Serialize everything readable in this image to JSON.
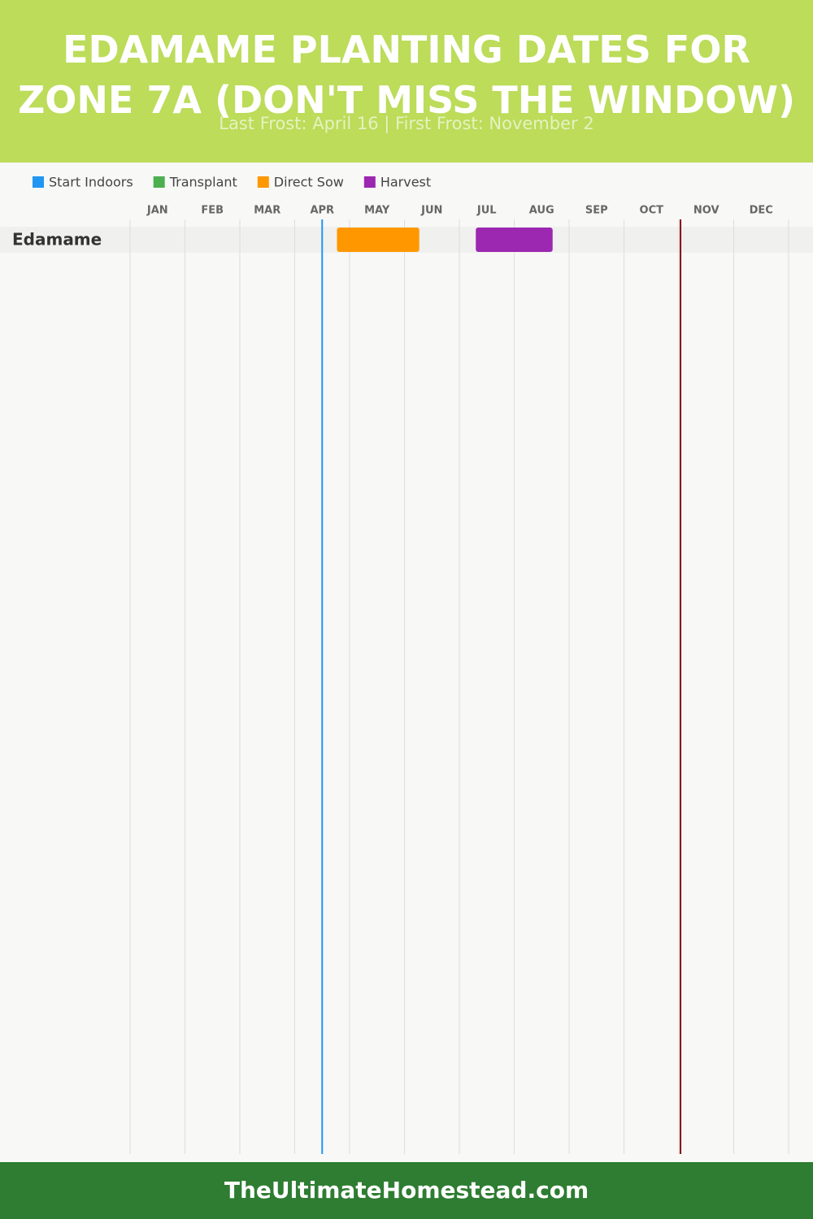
{
  "chart_data": {
    "type": "gantt",
    "title": "EDAMAME PLANTING DATES FOR ZONE 7A (DON'T MISS THE WINDOW)",
    "subtitle": "Last Frost: April 16 | First Frost: November 2",
    "categories": [
      "Edamame"
    ],
    "series": [
      {
        "name": "Start Indoors",
        "color": "#2196f3",
        "values": [
          null
        ]
      },
      {
        "name": "Transplant",
        "color": "#4caf50",
        "values": [
          null
        ]
      },
      {
        "name": "Direct Sow",
        "color": "#ff9800",
        "values": [
          [
            3.77,
            5.27
          ]
        ]
      },
      {
        "name": "Harvest",
        "color": "#9c27b0",
        "values": [
          [
            6.3,
            7.7
          ]
        ]
      }
    ],
    "xlim": [
      0,
      12
    ],
    "xticks": [
      {
        "value": 0,
        "label": "JAN"
      },
      {
        "value": 1,
        "label": "FEB"
      },
      {
        "value": 2,
        "label": "MAR"
      },
      {
        "value": 3,
        "label": "APR"
      },
      {
        "value": 4,
        "label": "MAY"
      },
      {
        "value": 5,
        "label": "JUN"
      },
      {
        "value": 6,
        "label": "JUL"
      },
      {
        "value": 7,
        "label": "AUG"
      },
      {
        "value": 8,
        "label": "SEP"
      },
      {
        "value": 9,
        "label": "OCT"
      },
      {
        "value": 10,
        "label": "NOV"
      },
      {
        "value": 11,
        "label": "DEC"
      }
    ],
    "grid": true,
    "frost_lines": [
      {
        "value": 3.5,
        "color": "#2196f3"
      },
      {
        "value": 10.03,
        "color": "#8b0000"
      }
    ]
  },
  "footer": "TheUltimateHomestead.com"
}
